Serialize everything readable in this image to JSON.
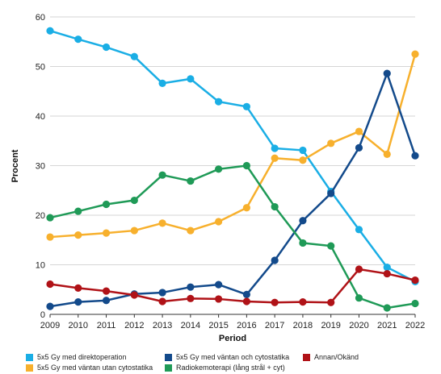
{
  "chart_data": {
    "type": "line",
    "xlabel": "Period",
    "ylabel": "Procent",
    "ylim": [
      0,
      60
    ],
    "yticks": [
      0,
      10,
      20,
      30,
      40,
      50,
      60
    ],
    "grid": true,
    "legend_position": "bottom",
    "categories": [
      "2009",
      "2010",
      "2011",
      "2012",
      "2013",
      "2014",
      "2015",
      "2016",
      "2017",
      "2018",
      "2019",
      "2020",
      "2021",
      "2022"
    ],
    "series": [
      {
        "name": "5x5 Gy med direktoperation",
        "color": "#1aaee5",
        "values": [
          57.2,
          55.5,
          53.9,
          52.0,
          46.6,
          47.5,
          42.9,
          41.9,
          33.5,
          33.1,
          24.8,
          17.1,
          9.5,
          6.6
        ]
      },
      {
        "name": "5x5 Gy med väntan utan cytostatika",
        "color": "#f7b02d",
        "values": [
          15.6,
          16.0,
          16.4,
          16.9,
          18.4,
          16.9,
          18.7,
          21.5,
          31.5,
          31.1,
          34.5,
          36.9,
          32.3,
          52.5
        ]
      },
      {
        "name": "5x5 Gy med väntan och cytostatika",
        "color": "#134a8b",
        "values": [
          1.6,
          2.5,
          2.8,
          4.1,
          4.4,
          5.5,
          6.0,
          4.0,
          10.9,
          18.9,
          24.4,
          33.6,
          48.6,
          32.0
        ]
      },
      {
        "name": "Radiokemoterapi (lång strål + cyt)",
        "color": "#1f9a57",
        "values": [
          19.5,
          20.8,
          22.2,
          23.0,
          28.1,
          26.9,
          29.3,
          30.0,
          21.7,
          14.4,
          13.8,
          3.3,
          1.3,
          2.2
        ]
      },
      {
        "name": "Annan/Okänd",
        "color": "#b01217",
        "values": [
          6.1,
          5.3,
          4.7,
          3.9,
          2.6,
          3.2,
          3.1,
          2.6,
          2.4,
          2.5,
          2.4,
          9.1,
          8.2,
          6.9
        ]
      }
    ]
  }
}
